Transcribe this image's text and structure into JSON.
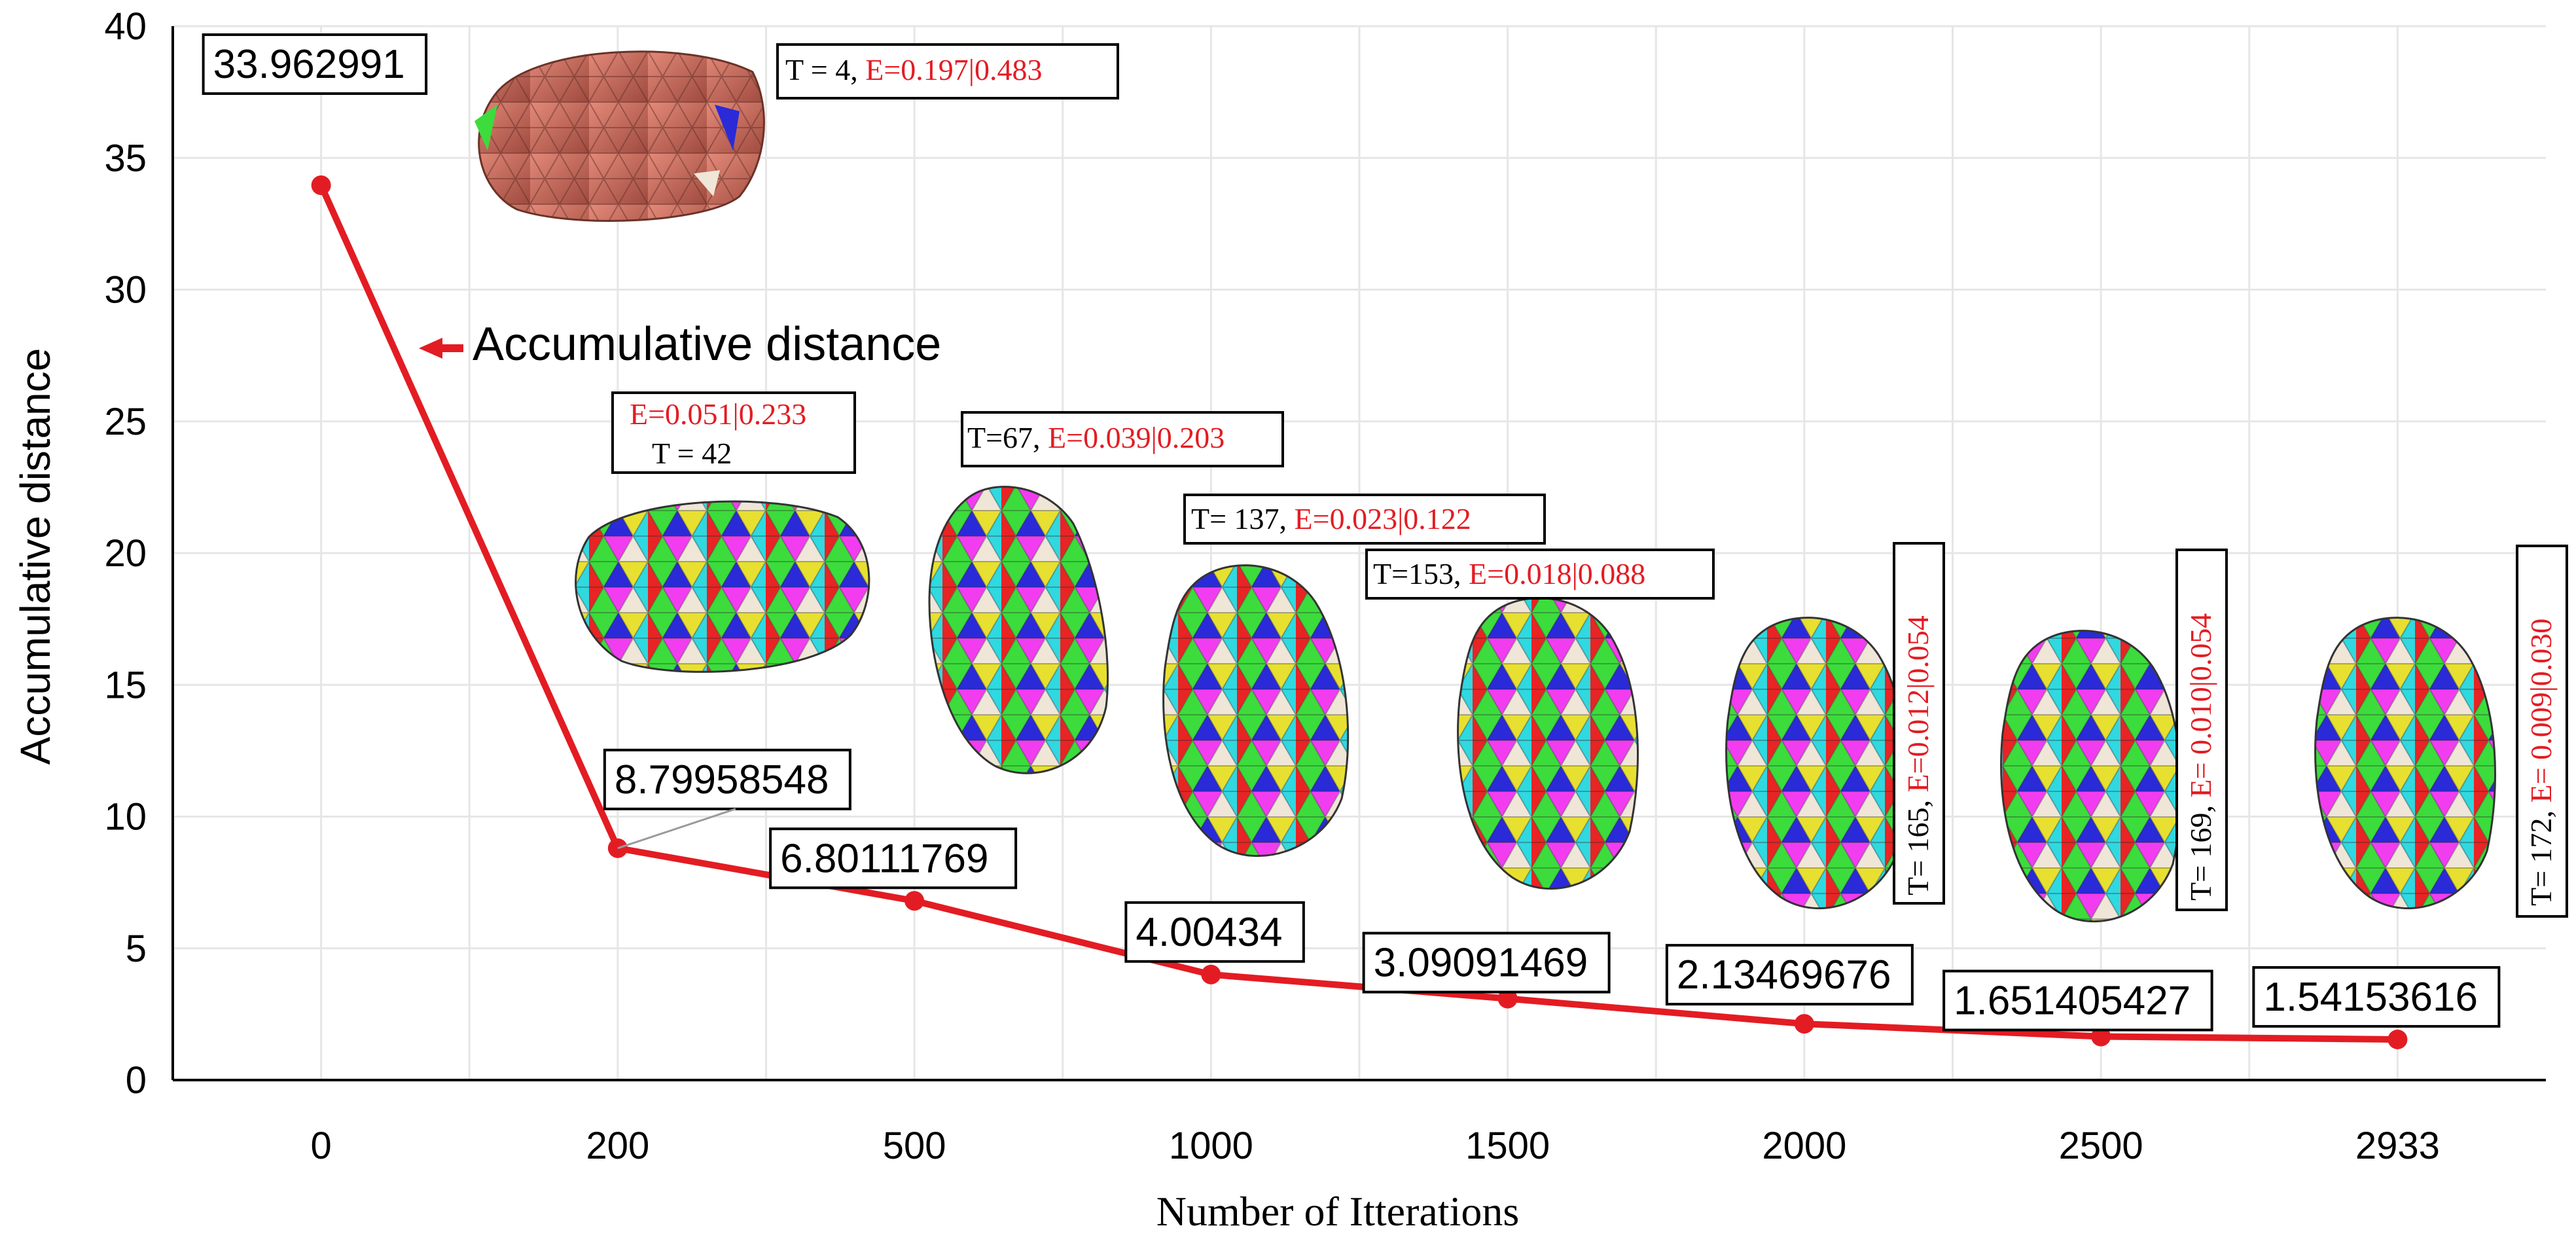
{
  "colors": {
    "series": "#e31c23",
    "grid": "#e6e6e6",
    "axis": "#000000"
  },
  "chart_data": {
    "type": "line",
    "title": "",
    "xlabel": "Number of Itterations",
    "ylabel": "Accumulative  distance",
    "categories": [
      "0",
      "200",
      "500",
      "1000",
      "1500",
      "2000",
      "2500",
      "2933"
    ],
    "ylim": [
      0,
      40
    ],
    "yticks": [
      "0",
      "5",
      "10",
      "15",
      "20",
      "25",
      "30",
      "35",
      "40"
    ],
    "grid": true,
    "series": [
      {
        "name": "Accumulative  distance",
        "values": [
          33.962991,
          8.79958548,
          6.80111769,
          4.00434,
          3.09091469,
          2.13469676,
          1.651405427,
          1.54153616
        ],
        "labels": [
          "33.962991",
          "8.79958548",
          "6.80111769",
          "4.00434",
          "3.09091469",
          "2.13469676",
          "1.651405427",
          "1.54153616"
        ]
      }
    ],
    "legend": {
      "label": "Accumulative  distance",
      "placement": "upper-left"
    },
    "annotations": [
      {
        "id": "a0",
        "t": "T = 4",
        "sep": ", ",
        "e": "E=0.197|0.483"
      },
      {
        "id": "a1",
        "t": "T = 42",
        "e": "E=0.051|0.233"
      },
      {
        "id": "a2",
        "t": "T=67",
        "sep": ", ",
        "e": "E=0.039|0.203"
      },
      {
        "id": "a3",
        "t": "T= 137",
        "sep": ", ",
        "e": "E=0.023|0.122"
      },
      {
        "id": "a4",
        "t": "T=153",
        "sep": ", ",
        "e": "E=0.018|0.088"
      },
      {
        "id": "a5",
        "t": "T= 165",
        "sep": ", ",
        "e": "E=0.012|0.054"
      },
      {
        "id": "a6",
        "t": "T= 169",
        "sep": ", ",
        "e": "E= 0.010|0.054"
      },
      {
        "id": "a7",
        "t": "T= 172",
        "sep": ", ",
        "e": "E= 0.009|0.030"
      }
    ]
  }
}
